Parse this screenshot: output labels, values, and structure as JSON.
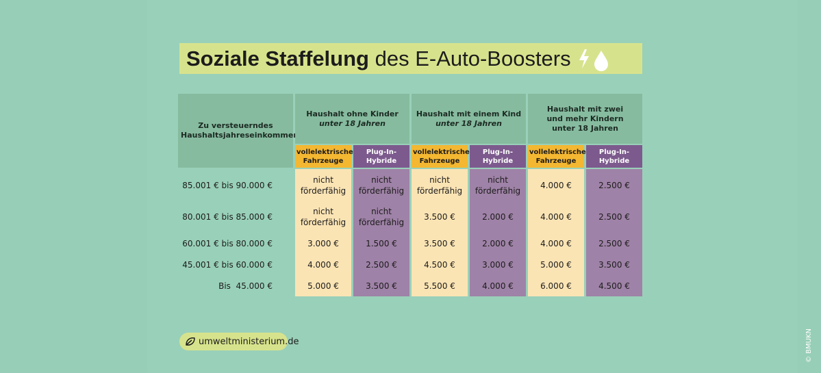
{
  "title": {
    "bold": "Soziale Staffelung",
    "rest": " des E-Auto-Boosters"
  },
  "table": {
    "row_header": "Zu versteuerndes Haushaltsjahreseinkommen",
    "groups": [
      {
        "title": "Haushalt ohne Kinder",
        "subtitle": "unter 18 Jahren"
      },
      {
        "title": "Haushalt mit einem Kind",
        "subtitle": "unter 18 Jahren"
      },
      {
        "title": "Haushalt mit zwei und mehr Kindern",
        "subtitle": "unter 18 Jahren"
      }
    ],
    "subheaders": [
      "vollelektrische Fahrzeuge",
      "Plug-In-Hybride",
      "vollelektrische Fahrzeuge",
      "Plug-In-Hybride",
      "vollelektrische Fahrzeuge",
      "Plug-In-Hybride"
    ],
    "rows": [
      {
        "label": "85.001 € bis 90.000 €",
        "cells": [
          "nicht förderfähig",
          "nicht förderfähig",
          "nicht förderfähig",
          "nicht förderfähig",
          "4.000 €",
          "2.500 €"
        ]
      },
      {
        "label": "80.001 € bis 85.000 €",
        "cells": [
          "nicht förderfähig",
          "nicht förderfähig",
          "3.500 €",
          "2.000 €",
          "4.000 €",
          "2.500 €"
        ]
      },
      {
        "label": "60.001 € bis 80.000 €",
        "cells": [
          "3.000 €",
          "1.500 €",
          "3.500 €",
          "2.000 €",
          "4.000 €",
          "2.500 €"
        ]
      },
      {
        "label": "45.001 € bis 60.000 €",
        "cells": [
          "4.000 €",
          "2.500 €",
          "4.500 €",
          "3.000 €",
          "5.000 €",
          "3.500 €"
        ]
      },
      {
        "label": "Bis  45.000 €",
        "cells": [
          "5.000 €",
          "3.500 €",
          "5.500 €",
          "4.000 €",
          "6.000 €",
          "4.500 €"
        ]
      }
    ]
  },
  "footer": {
    "link": "umweltministerium.de",
    "credit": "© BMUKN"
  }
}
